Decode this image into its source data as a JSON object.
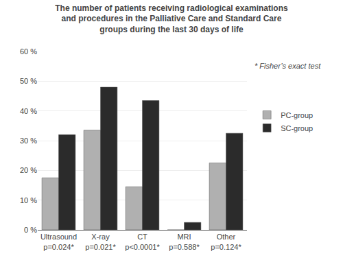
{
  "chart_data": {
    "type": "bar",
    "title": "The number of patients receiving radiological examinations\nand procedures in the Palliative Care and Standard Care\ngroups during the last 30 days of life",
    "categories": [
      "Ultrasound\np=0.024*",
      "X-ray\np=0.021*",
      "CT\np<0.0001*",
      "MRI\np=0.588*",
      "Other\np=0.124*"
    ],
    "series": [
      {
        "name": "PC-group",
        "color": "#b0b0b0",
        "values": [
          17.5,
          33.5,
          14.5,
          0,
          22.5
        ]
      },
      {
        "name": "SC-group",
        "color": "#2b2b2b",
        "values": [
          32.0,
          48.0,
          43.5,
          2.5,
          32.5
        ]
      }
    ],
    "ylim": [
      0,
      60
    ],
    "yticks": [
      {
        "value": 0,
        "label": "0 %"
      },
      {
        "value": 10,
        "label": "10 %"
      },
      {
        "value": 20,
        "label": "20 %"
      },
      {
        "value": 30,
        "label": "30 %"
      },
      {
        "value": 40,
        "label": "40 %"
      },
      {
        "value": 50,
        "label": "50 %"
      },
      {
        "value": 60,
        "label": "60 %"
      }
    ],
    "grid": true,
    "legend": "right",
    "annotations": [
      "* Fisher’s exact test"
    ]
  }
}
